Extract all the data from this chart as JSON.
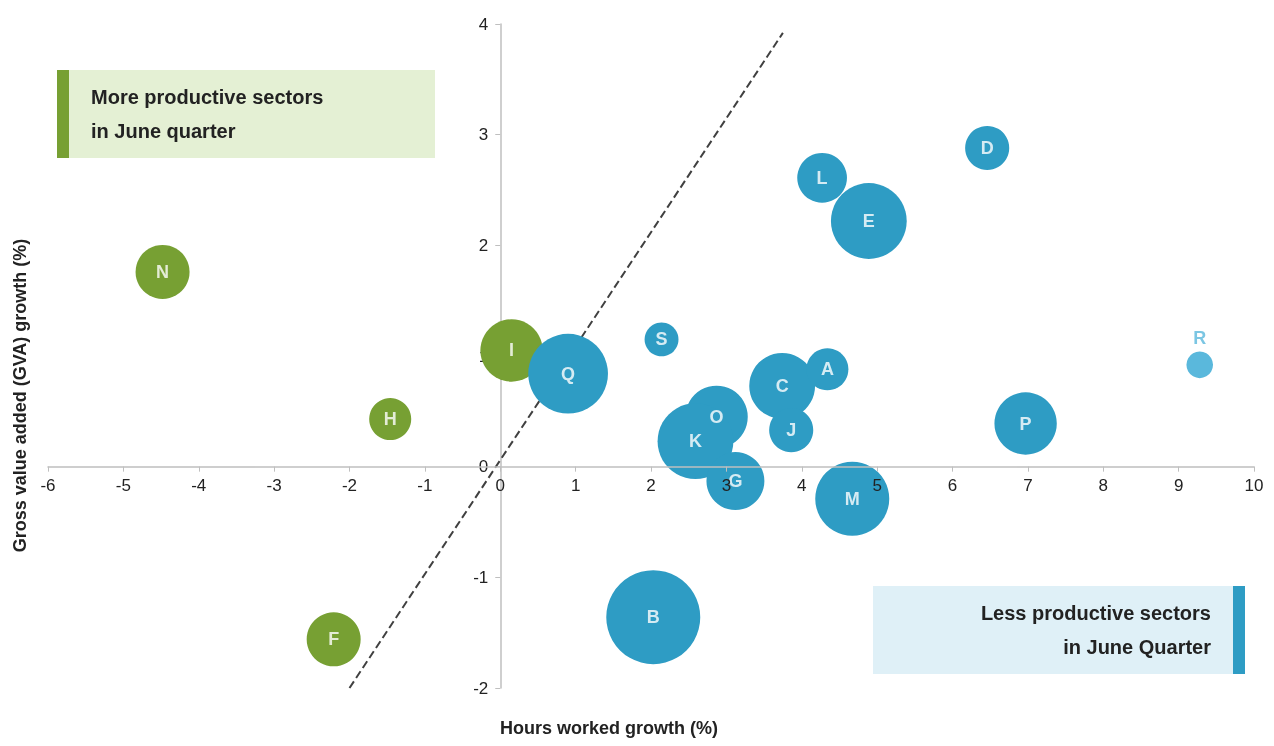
{
  "chart_data": {
    "type": "bubble",
    "xlabel": "Hours worked growth (%)",
    "ylabel": "Gross value added (GVA) growth (%)",
    "xlim": [
      -6,
      10
    ],
    "xticks": [
      -6,
      -5,
      -4,
      -3,
      -2,
      -1,
      0,
      1,
      2,
      3,
      4,
      5,
      6,
      7,
      8,
      9,
      10
    ],
    "ylim": [
      -2,
      4
    ],
    "yticks": [
      -2,
      -1,
      0,
      1,
      2,
      3,
      4
    ],
    "grid": false,
    "series": [
      {
        "type": "bubble",
        "x": [
          -4.48,
          0.15,
          0.9,
          -1.46,
          -2.21,
          2.14,
          2.03,
          2.87,
          2.59,
          3.12,
          3.74,
          4.34,
          3.86,
          4.67,
          4.27,
          4.89,
          6.46,
          6.97,
          9.28
        ],
        "values": [
          1.76,
          1.05,
          0.84,
          0.43,
          -1.56,
          1.15,
          -1.36,
          0.45,
          0.23,
          -0.13,
          0.73,
          0.88,
          0.33,
          -0.29,
          2.61,
          2.22,
          2.88,
          0.39,
          0.92
        ],
        "sizes": [
          0.33,
          0.44,
          0.72,
          0.2,
          0.33,
          0.13,
          1,
          0.44,
          0.65,
          0.38,
          0.49,
          0.2,
          0.22,
          0.62,
          0.28,
          0.65,
          0.22,
          0.44,
          0.08
        ],
        "colors": [
          "#77a033",
          "#77a033",
          "#2e9cc4",
          "#77a033",
          "#77a033",
          "#2e9cc4",
          "#2e9cc4",
          "#2e9cc4",
          "#2e9cc4",
          "#2e9cc4",
          "#2e9cc4",
          "#2e9cc4",
          "#2e9cc4",
          "#2e9cc4",
          "#2e9cc4",
          "#2e9cc4",
          "#2e9cc4",
          "#2e9cc4",
          "#5ab8dc"
        ]
      },
      {
        "type": "line",
        "x": [
          -2.0,
          3.75
        ],
        "values": [
          -2.0,
          3.92
        ],
        "color": "#404040",
        "line_style": "dashed"
      }
    ],
    "annotations": [
      "More productive sectors\nin June quarter",
      "Less productive sectors\nin June Quarter",
      {
        "text": "N",
        "x": -4.48,
        "y": 1.76
      },
      {
        "text": "I",
        "x": 0.15,
        "y": 1.05
      },
      {
        "text": "Q",
        "x": 0.9,
        "y": 0.84
      },
      {
        "text": "H",
        "x": -1.46,
        "y": 0.43
      },
      {
        "text": "F",
        "x": -2.21,
        "y": -1.56
      },
      {
        "text": "S",
        "x": 2.14,
        "y": 1.15
      },
      {
        "text": "B",
        "x": 2.03,
        "y": -1.36
      },
      {
        "text": "O",
        "x": 2.87,
        "y": 0.45
      },
      {
        "text": "K",
        "x": 2.59,
        "y": 0.23
      },
      {
        "text": "G",
        "x": 3.12,
        "y": -0.13
      },
      {
        "text": "C",
        "x": 3.74,
        "y": 0.73
      },
      {
        "text": "A",
        "x": 4.34,
        "y": 0.88
      },
      {
        "text": "J",
        "x": 3.86,
        "y": 0.33
      },
      {
        "text": "M",
        "x": 4.67,
        "y": -0.29
      },
      {
        "text": "L",
        "x": 4.27,
        "y": 2.61
      },
      {
        "text": "E",
        "x": 4.89,
        "y": 2.22
      },
      {
        "text": "D",
        "x": 6.46,
        "y": 2.88
      },
      {
        "text": "P",
        "x": 6.97,
        "y": 0.39
      },
      {
        "text": "R",
        "x": 9.28,
        "y": 0.92
      }
    ]
  }
}
